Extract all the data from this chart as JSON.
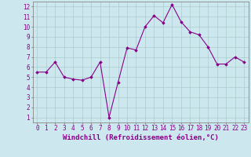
{
  "x": [
    0,
    1,
    2,
    3,
    4,
    5,
    6,
    7,
    8,
    9,
    10,
    11,
    12,
    13,
    14,
    15,
    16,
    17,
    18,
    19,
    20,
    21,
    22,
    23
  ],
  "y": [
    5.5,
    5.5,
    6.5,
    5.0,
    4.8,
    4.7,
    5.0,
    6.5,
    1.0,
    4.5,
    7.9,
    7.7,
    10.0,
    11.1,
    10.4,
    12.2,
    10.5,
    9.5,
    9.2,
    8.0,
    6.3,
    6.3,
    7.0,
    6.5
  ],
  "line_color": "#880088",
  "marker": "D",
  "marker_size": 1.8,
  "line_width": 0.8,
  "xlabel": "Windchill (Refroidissement éolien,°C)",
  "xlabel_fontsize": 6.5,
  "xlim": [
    -0.5,
    23.5
  ],
  "ylim": [
    0.5,
    12.5
  ],
  "yticks": [
    1,
    2,
    3,
    4,
    5,
    6,
    7,
    8,
    9,
    10,
    11,
    12
  ],
  "xticks": [
    0,
    1,
    2,
    3,
    4,
    5,
    6,
    7,
    8,
    9,
    10,
    11,
    12,
    13,
    14,
    15,
    16,
    17,
    18,
    19,
    20,
    21,
    22,
    23
  ],
  "background_color": "#cce8ee",
  "grid_color": "#aacccc",
  "tick_fontsize": 5.5,
  "tick_label_color": "#880088",
  "spine_color": "#888888"
}
